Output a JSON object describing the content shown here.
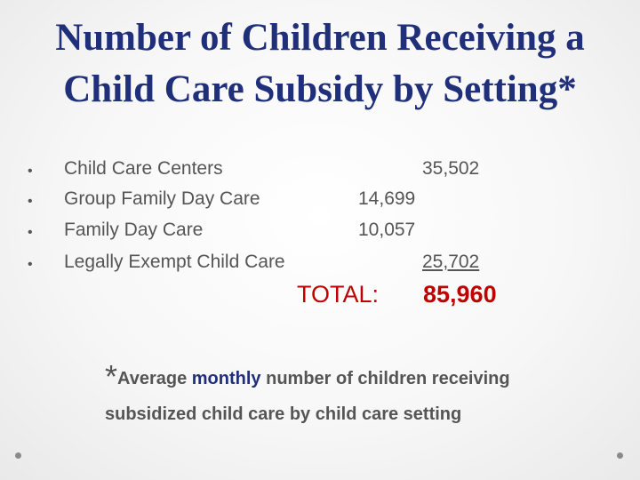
{
  "title": {
    "line1": "Number of Children Receiving a",
    "line2": "Child Care Subsidy by Setting*"
  },
  "items": [
    {
      "label": "Child Care Centers",
      "value": "35,502"
    },
    {
      "label": "Group Family Day Care",
      "value": "14,699"
    },
    {
      "label": "Family Day Care",
      "value": "10,057"
    },
    {
      "label": "Legally Exempt Child Care",
      "value": "25,702"
    }
  ],
  "total": {
    "label": "TOTAL:",
    "value": "85,960"
  },
  "footnote": {
    "star": "*",
    "part1": "Average ",
    "emphasis": "monthly",
    "part2": " number of children receiving",
    "line2": "subsidized child care by child care setting"
  },
  "bullet_glyph": "•"
}
